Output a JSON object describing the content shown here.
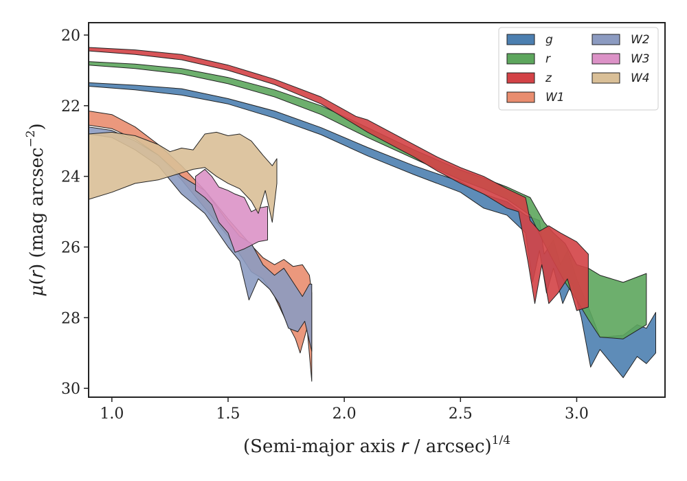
{
  "chart_data": {
    "type": "area",
    "xlabel": "(Semi-major axis r / arcsec)",
    "xlabel_parts": {
      "prefix": "(Semi-major axis ",
      "var": "r",
      "mid": " / arcsec)",
      "sup": "1/4"
    },
    "ylabel_parts": {
      "mu": "μ",
      "open": "(",
      "var": "r",
      "close": ") (mag arcsec",
      "sup": "−2",
      "end": ")"
    },
    "xlim": [
      0.9,
      3.38
    ],
    "ylim": [
      30.25,
      19.65
    ],
    "y_inverted": true,
    "xticks": [
      "1.0",
      "1.5",
      "2.0",
      "2.5",
      "3.0"
    ],
    "xtick_values": [
      1.0,
      1.5,
      2.0,
      2.5,
      3.0
    ],
    "yticks": [
      "20",
      "22",
      "24",
      "26",
      "28",
      "30"
    ],
    "ytick_values": [
      20,
      22,
      24,
      26,
      28,
      30
    ],
    "legend_position": "top-right",
    "legend_columns": 2,
    "series": [
      {
        "name": "g",
        "color": "#4c7fb0",
        "upper": [
          [
            0.9,
            21.35
          ],
          [
            1.1,
            21.42
          ],
          [
            1.3,
            21.52
          ],
          [
            1.5,
            21.8
          ],
          [
            1.7,
            22.15
          ],
          [
            1.9,
            22.62
          ],
          [
            2.1,
            23.18
          ],
          [
            2.3,
            23.7
          ],
          [
            2.5,
            24.15
          ],
          [
            2.6,
            24.5
          ],
          [
            2.7,
            24.72
          ],
          [
            2.78,
            25.1
          ],
          [
            2.84,
            25.25
          ],
          [
            2.86,
            26.2
          ],
          [
            2.9,
            25.8
          ],
          [
            2.93,
            26.5
          ],
          [
            2.96,
            26.1
          ],
          [
            3.0,
            26.9
          ],
          [
            3.05,
            27.7
          ],
          [
            3.1,
            28.55
          ],
          [
            3.2,
            28.5
          ],
          [
            3.26,
            28.2
          ],
          [
            3.3,
            28.3
          ],
          [
            3.34,
            27.85
          ]
        ],
        "lower": [
          [
            0.9,
            21.45
          ],
          [
            1.1,
            21.55
          ],
          [
            1.3,
            21.7
          ],
          [
            1.5,
            21.95
          ],
          [
            1.7,
            22.35
          ],
          [
            1.9,
            22.82
          ],
          [
            2.1,
            23.42
          ],
          [
            2.3,
            23.95
          ],
          [
            2.5,
            24.45
          ],
          [
            2.6,
            24.9
          ],
          [
            2.7,
            25.1
          ],
          [
            2.78,
            25.6
          ],
          [
            2.81,
            27.0
          ],
          [
            2.84,
            26.1
          ],
          [
            2.87,
            27.3
          ],
          [
            2.9,
            26.6
          ],
          [
            2.94,
            27.6
          ],
          [
            2.98,
            27.0
          ],
          [
            3.02,
            28.0
          ],
          [
            3.06,
            29.4
          ],
          [
            3.1,
            28.9
          ],
          [
            3.2,
            29.7
          ],
          [
            3.26,
            29.1
          ],
          [
            3.3,
            29.3
          ],
          [
            3.34,
            29.0
          ]
        ]
      },
      {
        "name": "r",
        "color": "#5da65d",
        "upper": [
          [
            0.9,
            20.75
          ],
          [
            1.1,
            20.82
          ],
          [
            1.3,
            20.95
          ],
          [
            1.5,
            21.2
          ],
          [
            1.7,
            21.55
          ],
          [
            1.9,
            22.0
          ],
          [
            2.1,
            22.62
          ],
          [
            2.3,
            23.25
          ],
          [
            2.5,
            23.82
          ],
          [
            2.6,
            24.05
          ],
          [
            2.7,
            24.3
          ],
          [
            2.8,
            24.6
          ],
          [
            2.86,
            25.3
          ],
          [
            2.9,
            25.6
          ],
          [
            2.95,
            25.9
          ],
          [
            3.0,
            26.5
          ],
          [
            3.05,
            26.6
          ],
          [
            3.1,
            26.8
          ],
          [
            3.2,
            27.0
          ],
          [
            3.3,
            26.75
          ]
        ],
        "lower": [
          [
            0.9,
            20.85
          ],
          [
            1.1,
            20.95
          ],
          [
            1.3,
            21.1
          ],
          [
            1.5,
            21.38
          ],
          [
            1.7,
            21.75
          ],
          [
            1.9,
            22.25
          ],
          [
            2.1,
            22.9
          ],
          [
            2.3,
            23.5
          ],
          [
            2.5,
            24.1
          ],
          [
            2.6,
            24.35
          ],
          [
            2.7,
            24.65
          ],
          [
            2.8,
            25.1
          ],
          [
            2.86,
            25.9
          ],
          [
            2.9,
            26.4
          ],
          [
            2.95,
            27.0
          ],
          [
            3.0,
            27.5
          ],
          [
            3.05,
            28.05
          ],
          [
            3.1,
            28.55
          ],
          [
            3.2,
            28.6
          ],
          [
            3.3,
            28.2
          ]
        ]
      },
      {
        "name": "z",
        "color": "#d34246",
        "upper": [
          [
            0.9,
            20.35
          ],
          [
            1.1,
            20.42
          ],
          [
            1.3,
            20.55
          ],
          [
            1.5,
            20.85
          ],
          [
            1.7,
            21.25
          ],
          [
            1.9,
            21.75
          ],
          [
            2.05,
            22.3
          ],
          [
            2.1,
            22.4
          ],
          [
            2.2,
            22.75
          ],
          [
            2.3,
            23.1
          ],
          [
            2.4,
            23.45
          ],
          [
            2.5,
            23.75
          ],
          [
            2.6,
            24.0
          ],
          [
            2.7,
            24.35
          ],
          [
            2.78,
            24.6
          ],
          [
            2.8,
            25.25
          ],
          [
            2.84,
            25.55
          ],
          [
            2.88,
            25.4
          ],
          [
            2.93,
            25.6
          ],
          [
            3.0,
            25.85
          ],
          [
            3.05,
            26.2
          ]
        ],
        "lower": [
          [
            0.9,
            20.45
          ],
          [
            1.1,
            20.55
          ],
          [
            1.3,
            20.7
          ],
          [
            1.5,
            21.0
          ],
          [
            1.7,
            21.4
          ],
          [
            1.9,
            21.95
          ],
          [
            2.05,
            22.55
          ],
          [
            2.1,
            22.75
          ],
          [
            2.2,
            23.1
          ],
          [
            2.3,
            23.45
          ],
          [
            2.4,
            23.85
          ],
          [
            2.5,
            24.2
          ],
          [
            2.6,
            24.5
          ],
          [
            2.7,
            24.9
          ],
          [
            2.75,
            25.0
          ],
          [
            2.79,
            26.4
          ],
          [
            2.82,
            27.6
          ],
          [
            2.85,
            26.5
          ],
          [
            2.88,
            27.6
          ],
          [
            2.92,
            27.3
          ],
          [
            2.96,
            26.9
          ],
          [
            3.0,
            27.8
          ],
          [
            3.05,
            27.7
          ]
        ]
      },
      {
        "name": "W1",
        "color": "#e98d6f",
        "upper": [
          [
            0.9,
            22.15
          ],
          [
            1.0,
            22.25
          ],
          [
            1.1,
            22.6
          ],
          [
            1.2,
            23.1
          ],
          [
            1.3,
            23.7
          ],
          [
            1.4,
            24.4
          ],
          [
            1.5,
            25.2
          ],
          [
            1.6,
            25.95
          ],
          [
            1.65,
            26.3
          ],
          [
            1.7,
            26.5
          ],
          [
            1.74,
            26.35
          ],
          [
            1.78,
            26.55
          ],
          [
            1.82,
            26.5
          ],
          [
            1.85,
            26.8
          ],
          [
            1.86,
            27.3
          ]
        ],
        "lower": [
          [
            0.9,
            22.55
          ],
          [
            1.0,
            22.65
          ],
          [
            1.1,
            22.95
          ],
          [
            1.2,
            23.4
          ],
          [
            1.3,
            24.1
          ],
          [
            1.4,
            24.9
          ],
          [
            1.5,
            25.7
          ],
          [
            1.55,
            26.2
          ],
          [
            1.6,
            26.7
          ],
          [
            1.65,
            26.9
          ],
          [
            1.7,
            27.4
          ],
          [
            1.75,
            28.1
          ],
          [
            1.79,
            28.6
          ],
          [
            1.81,
            29.0
          ],
          [
            1.84,
            28.3
          ],
          [
            1.86,
            29.8
          ]
        ]
      },
      {
        "name": "W2",
        "color": "#8c9bc1",
        "upper": [
          [
            0.9,
            22.6
          ],
          [
            1.0,
            22.7
          ],
          [
            1.1,
            23.0
          ],
          [
            1.2,
            23.4
          ],
          [
            1.3,
            24.0
          ],
          [
            1.4,
            24.4
          ],
          [
            1.5,
            25.3
          ],
          [
            1.55,
            25.7
          ],
          [
            1.6,
            25.9
          ],
          [
            1.65,
            26.5
          ],
          [
            1.7,
            26.8
          ],
          [
            1.74,
            26.6
          ],
          [
            1.78,
            27.0
          ],
          [
            1.82,
            27.4
          ],
          [
            1.85,
            27.05
          ],
          [
            1.86,
            27.05
          ]
        ],
        "lower": [
          [
            0.9,
            22.8
          ],
          [
            1.0,
            22.9
          ],
          [
            1.1,
            23.25
          ],
          [
            1.2,
            23.7
          ],
          [
            1.3,
            24.5
          ],
          [
            1.4,
            25.05
          ],
          [
            1.5,
            26.0
          ],
          [
            1.55,
            26.4
          ],
          [
            1.59,
            27.5
          ],
          [
            1.63,
            26.9
          ],
          [
            1.68,
            27.2
          ],
          [
            1.72,
            27.6
          ],
          [
            1.76,
            28.3
          ],
          [
            1.8,
            28.4
          ],
          [
            1.83,
            28.1
          ],
          [
            1.86,
            28.95
          ]
        ]
      },
      {
        "name": "W3",
        "color": "#dc92c7",
        "upper": [
          [
            1.36,
            24.0
          ],
          [
            1.4,
            23.8
          ],
          [
            1.43,
            24.0
          ],
          [
            1.46,
            24.3
          ],
          [
            1.5,
            24.4
          ],
          [
            1.53,
            24.5
          ],
          [
            1.57,
            24.6
          ],
          [
            1.6,
            25.0
          ],
          [
            1.63,
            24.9
          ],
          [
            1.67,
            24.85
          ]
        ],
        "lower": [
          [
            1.36,
            24.4
          ],
          [
            1.4,
            24.6
          ],
          [
            1.43,
            24.8
          ],
          [
            1.46,
            25.3
          ],
          [
            1.5,
            25.6
          ],
          [
            1.53,
            26.15
          ],
          [
            1.57,
            26.05
          ],
          [
            1.6,
            25.95
          ],
          [
            1.63,
            25.85
          ],
          [
            1.67,
            25.8
          ]
        ]
      },
      {
        "name": "W4",
        "color": "#d9bf97",
        "upper": [
          [
            0.9,
            22.8
          ],
          [
            1.0,
            22.75
          ],
          [
            1.1,
            22.85
          ],
          [
            1.2,
            23.1
          ],
          [
            1.25,
            23.3
          ],
          [
            1.3,
            23.2
          ],
          [
            1.35,
            23.25
          ],
          [
            1.4,
            22.8
          ],
          [
            1.45,
            22.75
          ],
          [
            1.5,
            22.85
          ],
          [
            1.55,
            22.8
          ],
          [
            1.6,
            23.0
          ],
          [
            1.65,
            23.4
          ],
          [
            1.69,
            23.7
          ],
          [
            1.71,
            23.5
          ]
        ],
        "lower": [
          [
            0.9,
            24.65
          ],
          [
            1.0,
            24.45
          ],
          [
            1.1,
            24.2
          ],
          [
            1.2,
            24.1
          ],
          [
            1.25,
            24.0
          ],
          [
            1.3,
            23.9
          ],
          [
            1.35,
            23.8
          ],
          [
            1.4,
            23.75
          ],
          [
            1.45,
            24.0
          ],
          [
            1.5,
            24.2
          ],
          [
            1.55,
            24.35
          ],
          [
            1.6,
            24.7
          ],
          [
            1.63,
            25.05
          ],
          [
            1.66,
            24.4
          ],
          [
            1.69,
            25.3
          ],
          [
            1.71,
            24.2
          ]
        ]
      }
    ]
  }
}
